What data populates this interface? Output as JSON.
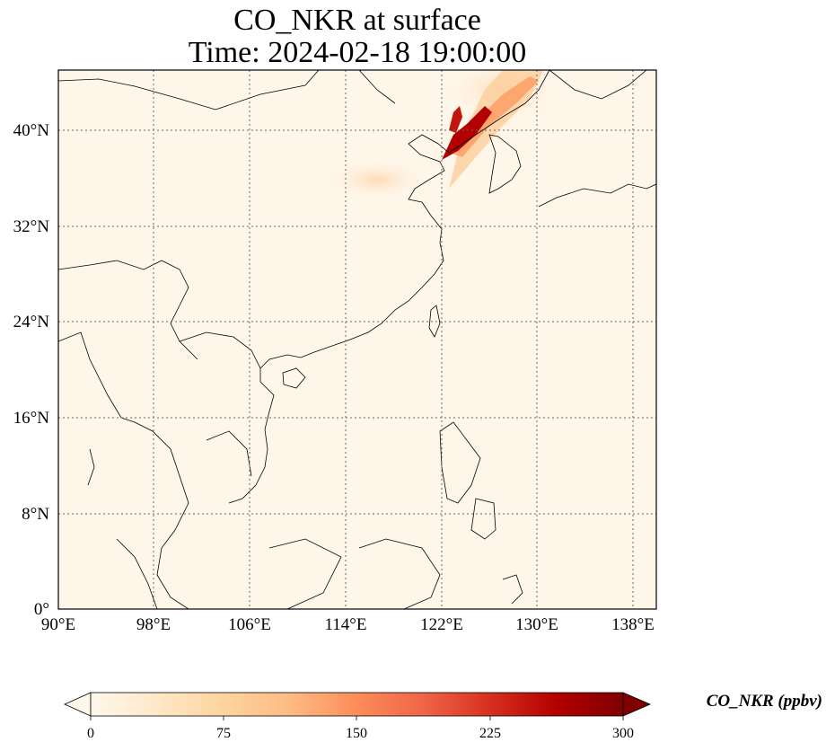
{
  "title_line1": "CO_NKR at surface",
  "title_line2": "Time: 2024-02-18 19:00:00",
  "lon_ticks": [
    "90°E",
    "98°E",
    "106°E",
    "114°E",
    "122°E",
    "130°E",
    "138°E"
  ],
  "lat_ticks": [
    "40°N",
    "32°N",
    "24°N",
    "16°N",
    "8°N",
    "0°"
  ],
  "colorbar": {
    "label": "CO_NKR (ppbv)",
    "ticks": [
      "0",
      "75",
      "150",
      "225",
      "300"
    ],
    "colormap": "OrRd",
    "extend": "both",
    "colors": [
      "#fff7ec",
      "#fee8c8",
      "#fdd49e",
      "#fdbb84",
      "#fc8d59",
      "#ef6548",
      "#d7301f",
      "#b30000",
      "#7f0000"
    ]
  },
  "map": {
    "background_color": "#fff6ea",
    "gridlines": "dotted",
    "extent": {
      "lon_min": 90,
      "lon_max": 140,
      "lat_min": 0,
      "lat_max": 45
    }
  }
}
